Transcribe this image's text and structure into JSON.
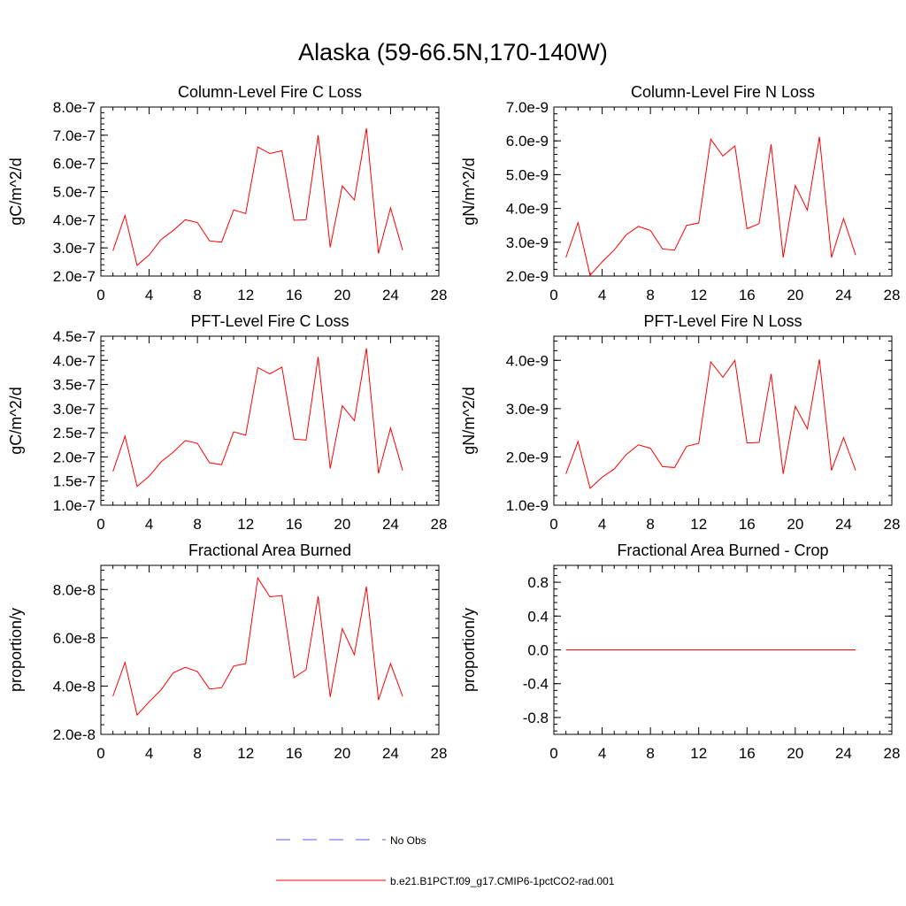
{
  "title": "Alaska (59-66.5N,170-140W)",
  "colors": {
    "series": "#ff0000",
    "obs": "#5a5aff",
    "axis": "#000000"
  },
  "legend": [
    {
      "label": "No Obs",
      "style": "dashed",
      "color": "#5a5aff"
    },
    {
      "label": "b.e21.B1PCT.f09_g17.CMIP6-1pctCO2-rad.001",
      "style": "solid",
      "color": "#ff0000"
    }
  ],
  "chart_data": [
    {
      "type": "line",
      "title": "Column-Level Fire C Loss",
      "ylabel": "gC/m^2/d",
      "xlim": [
        0,
        28
      ],
      "xticks": [
        "0",
        "4",
        "8",
        "12",
        "16",
        "20",
        "24",
        "28"
      ],
      "ylim": [
        2e-07,
        8e-07
      ],
      "yticks": [
        2e-07,
        3e-07,
        4e-07,
        5e-07,
        6e-07,
        7e-07,
        8e-07
      ],
      "yticklabels": [
        "2.0e-7",
        "3.0e-7",
        "4.0e-7",
        "5.0e-7",
        "6.0e-7",
        "7.0e-7",
        "8.0e-7"
      ],
      "x": [
        1,
        2,
        3,
        4,
        5,
        6,
        7,
        8,
        9,
        10,
        11,
        12,
        13,
        14,
        15,
        16,
        17,
        18,
        19,
        20,
        21,
        22,
        23,
        24,
        25
      ],
      "series": [
        {
          "values": [
            2.9e-07,
            4.15e-07,
            2.38e-07,
            2.75e-07,
            3.3e-07,
            3.62e-07,
            4e-07,
            3.9e-07,
            3.25e-07,
            3.2e-07,
            4.35e-07,
            4.22e-07,
            6.58e-07,
            6.35e-07,
            6.45e-07,
            3.98e-07,
            4e-07,
            7e-07,
            3.02e-07,
            5.2e-07,
            4.7e-07,
            7.25e-07,
            2.8e-07,
            4.42e-07,
            2.92e-07
          ]
        }
      ]
    },
    {
      "type": "line",
      "title": "Column-Level Fire N Loss",
      "ylabel": "gN/m^2/d",
      "xlim": [
        0,
        28
      ],
      "xticks": [
        "0",
        "4",
        "8",
        "12",
        "16",
        "20",
        "24",
        "28"
      ],
      "ylim": [
        2e-09,
        7e-09
      ],
      "yticks": [
        2e-09,
        3e-09,
        4e-09,
        5e-09,
        6e-09,
        7e-09
      ],
      "yticklabels": [
        "2.0e-9",
        "3.0e-9",
        "4.0e-9",
        "5.0e-9",
        "6.0e-9",
        "7.0e-9"
      ],
      "x": [
        1,
        2,
        3,
        4,
        5,
        6,
        7,
        8,
        9,
        10,
        11,
        12,
        13,
        14,
        15,
        16,
        17,
        18,
        19,
        20,
        21,
        22,
        23,
        24,
        25
      ],
      "series": [
        {
          "values": [
            2.55e-09,
            3.58e-09,
            2.02e-09,
            2.42e-09,
            2.77e-09,
            3.22e-09,
            3.47e-09,
            3.35e-09,
            2.8e-09,
            2.77e-09,
            3.5e-09,
            3.57e-09,
            6.05e-09,
            5.55e-09,
            5.85e-09,
            3.4e-09,
            3.55e-09,
            5.9e-09,
            2.55e-09,
            4.68e-09,
            3.95e-09,
            6.12e-09,
            2.55e-09,
            3.7e-09,
            2.62e-09
          ]
        }
      ]
    },
    {
      "type": "line",
      "title": "PFT-Level Fire C Loss",
      "ylabel": "gC/m^2/d",
      "xlim": [
        0,
        28
      ],
      "xticks": [
        "0",
        "4",
        "8",
        "12",
        "16",
        "20",
        "24",
        "28"
      ],
      "ylim": [
        1e-07,
        4.5e-07
      ],
      "yticks": [
        1e-07,
        1.5e-07,
        2e-07,
        2.5e-07,
        3e-07,
        3.5e-07,
        4e-07,
        4.5e-07
      ],
      "yticklabels": [
        "1.0e-7",
        "1.5e-7",
        "2.0e-7",
        "2.5e-7",
        "3.0e-7",
        "3.5e-7",
        "4.0e-7",
        "4.5e-7"
      ],
      "x": [
        1,
        2,
        3,
        4,
        5,
        6,
        7,
        8,
        9,
        10,
        11,
        12,
        13,
        14,
        15,
        16,
        17,
        18,
        19,
        20,
        21,
        22,
        23,
        24,
        25
      ],
      "series": [
        {
          "values": [
            1.7e-07,
            2.43e-07,
            1.39e-07,
            1.6e-07,
            1.9e-07,
            2.1e-07,
            2.34e-07,
            2.28e-07,
            1.88e-07,
            1.84e-07,
            2.52e-07,
            2.45e-07,
            3.85e-07,
            3.72e-07,
            3.86e-07,
            2.37e-07,
            2.35e-07,
            4.07e-07,
            1.76e-07,
            3.06e-07,
            2.75e-07,
            4.25e-07,
            1.66e-07,
            2.6e-07,
            1.72e-07
          ]
        }
      ]
    },
    {
      "type": "line",
      "title": "PFT-Level Fire N Loss",
      "ylabel": "gN/m^2/d",
      "xlim": [
        0,
        28
      ],
      "xticks": [
        "0",
        "4",
        "8",
        "12",
        "16",
        "20",
        "24",
        "28"
      ],
      "ylim": [
        1e-09,
        4.5e-09
      ],
      "yticks": [
        1e-09,
        2e-09,
        3e-09,
        4e-09
      ],
      "yticklabels": [
        "1.0e-9",
        "2.0e-9",
        "3.0e-9",
        "4.0e-9"
      ],
      "x": [
        1,
        2,
        3,
        4,
        5,
        6,
        7,
        8,
        9,
        10,
        11,
        12,
        13,
        14,
        15,
        16,
        17,
        18,
        19,
        20,
        21,
        22,
        23,
        24,
        25
      ],
      "series": [
        {
          "values": [
            1.65e-09,
            2.32e-09,
            1.35e-09,
            1.58e-09,
            1.75e-09,
            2.05e-09,
            2.25e-09,
            2.18e-09,
            1.8e-09,
            1.78e-09,
            2.22e-09,
            2.28e-09,
            3.97e-09,
            3.65e-09,
            4e-09,
            2.29e-09,
            2.3e-09,
            3.72e-09,
            1.65e-09,
            3.05e-09,
            2.58e-09,
            4.02e-09,
            1.72e-09,
            2.4e-09,
            1.72e-09
          ]
        }
      ]
    },
    {
      "type": "line",
      "title": "Fractional Area Burned",
      "ylabel": "proportion/y",
      "xlim": [
        0,
        28
      ],
      "xticks": [
        "0",
        "4",
        "8",
        "12",
        "16",
        "20",
        "24",
        "28"
      ],
      "ylim": [
        2e-08,
        9e-08
      ],
      "yticks": [
        2e-08,
        4e-08,
        6e-08,
        8e-08
      ],
      "yticklabels": [
        "2.0e-8",
        "4.0e-8",
        "6.0e-8",
        "8.0e-8"
      ],
      "x": [
        1,
        2,
        3,
        4,
        5,
        6,
        7,
        8,
        9,
        10,
        11,
        12,
        13,
        14,
        15,
        16,
        17,
        18,
        19,
        20,
        21,
        22,
        23,
        24,
        25
      ],
      "series": [
        {
          "values": [
            3.58e-08,
            4.98e-08,
            2.8e-08,
            3.35e-08,
            3.85e-08,
            4.55e-08,
            4.78e-08,
            4.6e-08,
            3.88e-08,
            3.93e-08,
            4.83e-08,
            4.93e-08,
            8.48e-08,
            7.7e-08,
            7.75e-08,
            4.35e-08,
            4.68e-08,
            7.72e-08,
            3.55e-08,
            6.38e-08,
            5.3e-08,
            8.12e-08,
            3.42e-08,
            4.93e-08,
            3.58e-08
          ]
        }
      ]
    },
    {
      "type": "line",
      "title": "Fractional Area Burned - Crop",
      "ylabel": "proportion/y",
      "xlim": [
        0,
        28
      ],
      "xticks": [
        "0",
        "4",
        "8",
        "12",
        "16",
        "20",
        "24",
        "28"
      ],
      "ylim": [
        -1.0,
        1.0
      ],
      "yticks": [
        -0.8,
        -0.4,
        0.0,
        0.4,
        0.8
      ],
      "yticklabels": [
        "-0.8",
        "-0.4",
        "0.0",
        "0.4",
        "0.8"
      ],
      "x": [
        1,
        2,
        3,
        4,
        5,
        6,
        7,
        8,
        9,
        10,
        11,
        12,
        13,
        14,
        15,
        16,
        17,
        18,
        19,
        20,
        21,
        22,
        23,
        24,
        25
      ],
      "series": [
        {
          "values": [
            0,
            0,
            0,
            0,
            0,
            0,
            0,
            0,
            0,
            0,
            0,
            0,
            0,
            0,
            0,
            0,
            0,
            0,
            0,
            0,
            0,
            0,
            0,
            0,
            0
          ]
        }
      ]
    }
  ]
}
